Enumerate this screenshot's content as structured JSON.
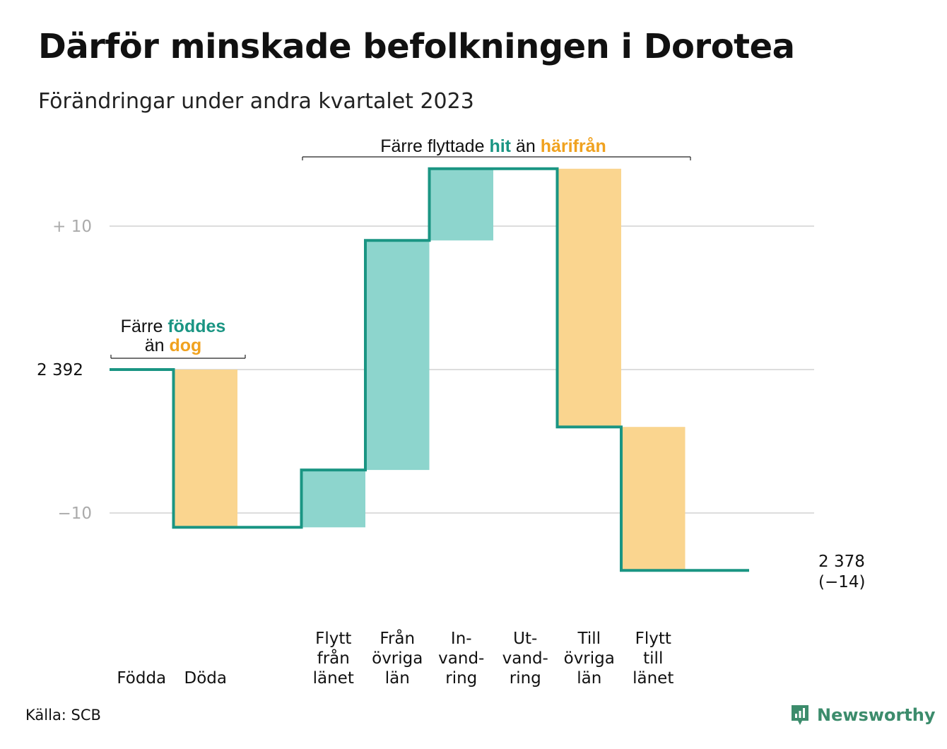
{
  "title": "Därför minskade befolkningen i Dorotea",
  "subtitle": "Förändringar under andra kvartalet 2023",
  "source": "Källa: SCB",
  "logo_text": "Newsworthy",
  "colors": {
    "line": "#1a9583",
    "increase": "#8dd5cd",
    "decrease": "#fad58f",
    "grid": "#dddddd",
    "accent_green": "#1a9583",
    "accent_orange": "#f0a21f"
  },
  "chart_data": {
    "type": "waterfall",
    "start_value": 2392,
    "start_label": "2  392",
    "end_label_1": "2 378",
    "end_label_2": "(−14)",
    "y_ticks": [
      {
        "value": 10,
        "label": "+  10"
      },
      {
        "value": -10,
        "label": "−10"
      }
    ],
    "y_range_relative": [
      -14,
      14
    ],
    "steps": [
      {
        "label": [
          "Födda"
        ],
        "change": 0
      },
      {
        "label": [
          "Döda"
        ],
        "change": -11
      },
      {
        "label": [],
        "change": 0
      },
      {
        "label": [
          "Flytt",
          "från",
          "länet"
        ],
        "change": 4
      },
      {
        "label": [
          "Från",
          "övriga",
          "län"
        ],
        "change": 16
      },
      {
        "label": [
          "In-",
          "vand-",
          "ring"
        ],
        "change": 5
      },
      {
        "label": [
          "Ut-",
          "vand-",
          "ring"
        ],
        "change": 0
      },
      {
        "label": [
          "Till",
          "övriga",
          "län"
        ],
        "change": -18
      },
      {
        "label": [
          "Flytt",
          "till",
          "länet"
        ],
        "change": -10
      },
      {
        "label": [],
        "change": 0
      }
    ],
    "annotations": {
      "births": {
        "line1_a": "Färre ",
        "line1_b": "föddes",
        "line2_a": "än ",
        "line2_b": "dog"
      },
      "moves": {
        "a": "Färre flyttade ",
        "b": "hit",
        "c": " än ",
        "d": "härifrån"
      }
    }
  }
}
